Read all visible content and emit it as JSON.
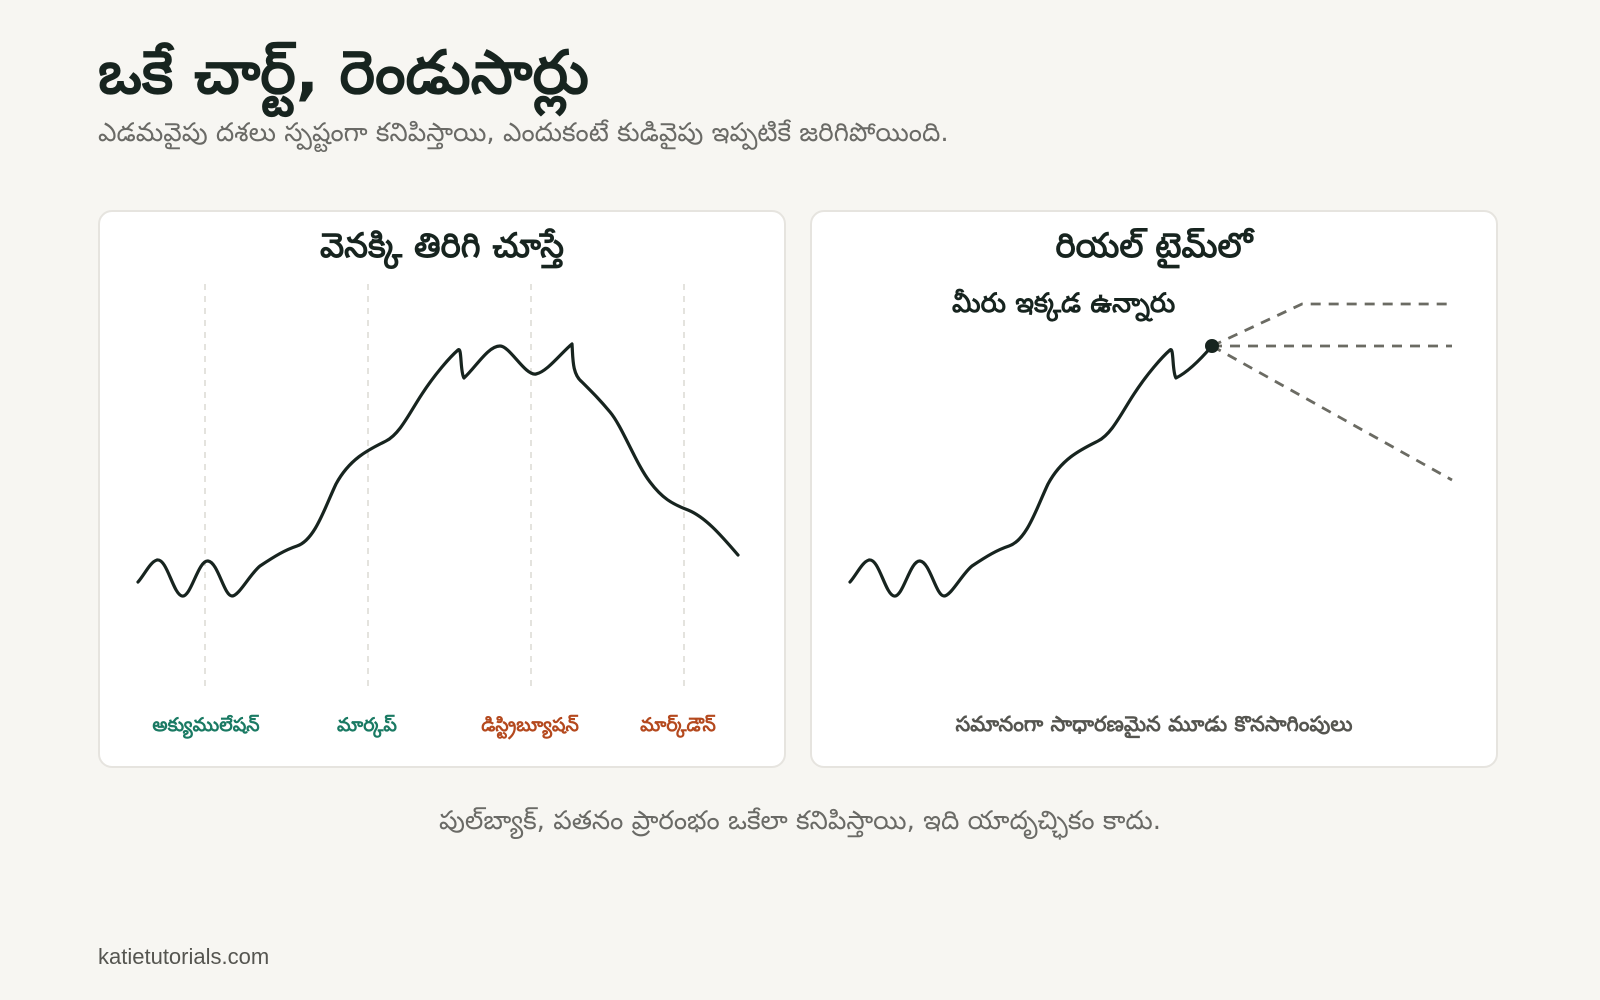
{
  "header": {
    "title": "ఒకే చార్ట్, రెండుసార్లు",
    "subtitle": "ఎడమవైపు దశలు స్పష్టంగా కనిపిస్తాయి, ఎందుకంటే కుడివైపు ఇప్పటికే జరిగిపోయింది."
  },
  "left_panel": {
    "title": "వెనక్కి తిరిగి చూస్తే",
    "phases": [
      {
        "label": "అక్యుములేషన్",
        "color": "#1a7a63"
      },
      {
        "label": "మార్కప్",
        "color": "#1a7a63"
      },
      {
        "label": "డిస్ట్రిబ్యూషన్",
        "color": "#b4491e"
      },
      {
        "label": "మార్క్‌డౌన్",
        "color": "#b4491e"
      }
    ]
  },
  "right_panel": {
    "title": "రియల్ టైమ్‌లో",
    "marker_label": "మీరు ఇక్కడ ఉన్నారు",
    "caption": "సమానంగా సాధారణమైన మూడు కొనసాగింపులు"
  },
  "conclusion": "పుల్‌బ్యాక్, పతనం ప్రారంభం ఒకేలా కనిపిస్తాయి, ఇది యాదృచ్ఛికం కాదు.",
  "site": "katietutorials.com",
  "colors": {
    "background": "#f7f6f2",
    "line": "#17241f",
    "accumulation_markup": "#1a7a63",
    "distribution_markdown": "#b4491e",
    "dashed_paths": "#6b6b63"
  }
}
